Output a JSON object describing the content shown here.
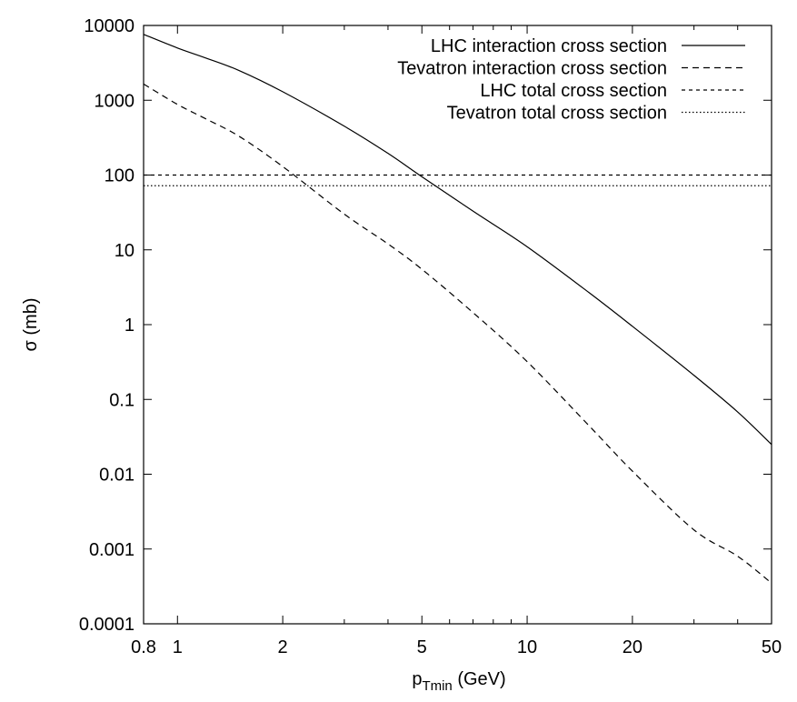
{
  "chart_data": {
    "type": "line",
    "xlabel": "p",
    "xlabel_sub": "Tmin",
    "xlabel_unit": " (GeV)",
    "ylabel": "σ (mb)",
    "x_scale": "log",
    "y_scale": "log",
    "xlim": [
      0.8,
      50
    ],
    "ylim": [
      0.0001,
      10000
    ],
    "grid": false,
    "legend_position": "top-right",
    "x_ticks": [
      {
        "value": 0.8,
        "label": "0.8"
      },
      {
        "value": 1,
        "label": "1"
      },
      {
        "value": 2,
        "label": "2"
      },
      {
        "value": 5,
        "label": "5"
      },
      {
        "value": 10,
        "label": "10"
      },
      {
        "value": 20,
        "label": "20"
      },
      {
        "value": 50,
        "label": "50"
      }
    ],
    "x_minor_ticks": [
      3,
      4,
      6,
      7,
      8,
      9,
      30,
      40
    ],
    "y_ticks": [
      {
        "value": 10000,
        "label": "10000"
      },
      {
        "value": 1000,
        "label": "1000"
      },
      {
        "value": 100,
        "label": "100"
      },
      {
        "value": 10,
        "label": "10"
      },
      {
        "value": 1,
        "label": "1"
      },
      {
        "value": 0.1,
        "label": "0.1"
      },
      {
        "value": 0.01,
        "label": "0.01"
      },
      {
        "value": 0.001,
        "label": "0.001"
      },
      {
        "value": 0.0001,
        "label": "0.0001"
      }
    ],
    "series": [
      {
        "name": "LHC interaction cross section",
        "dash": "solid",
        "x": [
          0.8,
          1,
          1.2,
          1.5,
          2,
          3,
          4,
          5,
          7,
          10,
          15,
          20,
          30,
          40,
          50
        ],
        "y": [
          7600,
          5000,
          3700,
          2500,
          1300,
          450,
          195,
          95,
          33,
          11,
          2.7,
          0.95,
          0.21,
          0.068,
          0.025
        ]
      },
      {
        "name": "Tevatron interaction cross section",
        "dash": "dashed",
        "x": [
          0.8,
          1,
          1.2,
          1.5,
          2,
          3,
          4,
          5,
          7,
          10,
          15,
          20,
          30,
          40,
          50
        ],
        "y": [
          1650,
          880,
          570,
          330,
          130,
          30,
          12,
          5.5,
          1.45,
          0.32,
          0.045,
          0.011,
          0.0018,
          0.0008,
          0.00035
        ]
      },
      {
        "name": "LHC total cross section",
        "dash": "short-dashed",
        "x": [
          0.8,
          50
        ],
        "y": [
          100,
          100
        ]
      },
      {
        "name": "Tevatron total cross section",
        "dash": "dotted",
        "x": [
          0.8,
          50
        ],
        "y": [
          72,
          72
        ]
      }
    ]
  }
}
